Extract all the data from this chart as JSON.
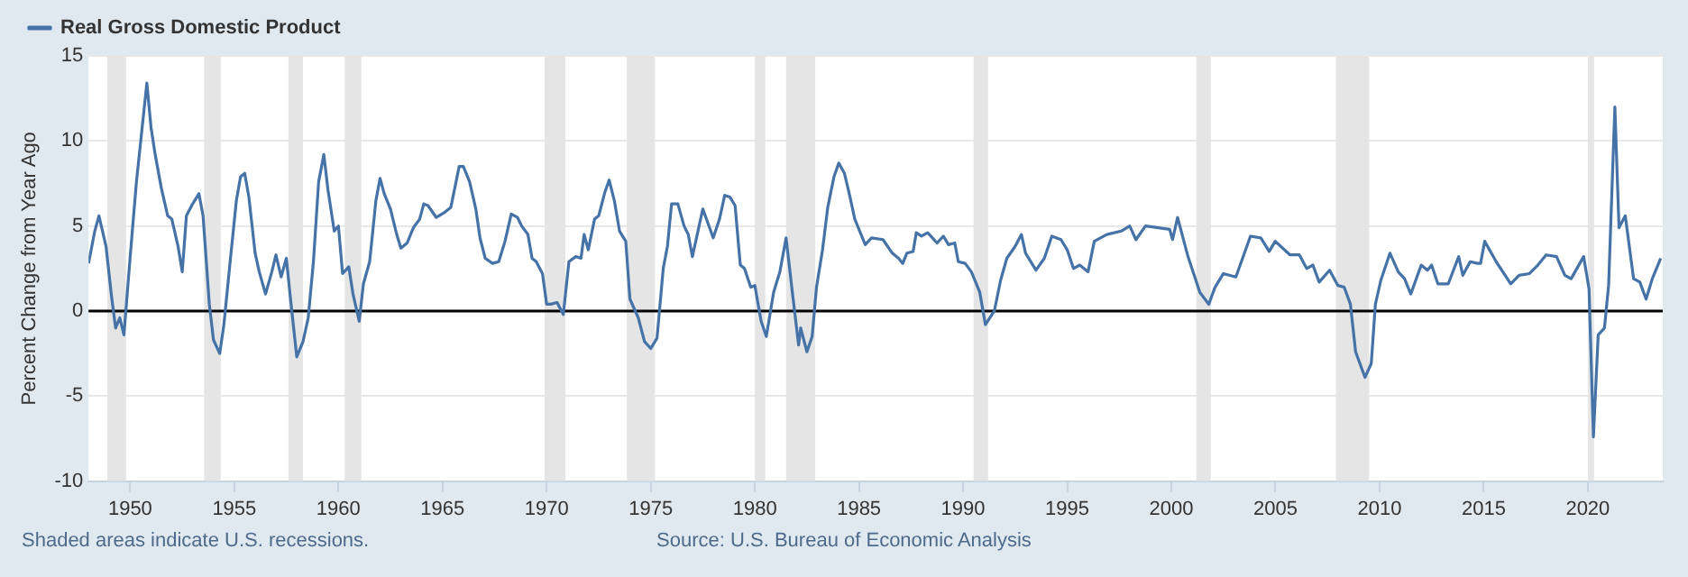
{
  "chart_data": {
    "type": "line",
    "ylabel": "Percent Change from Year Ago",
    "xlim": [
      1948,
      2023.6
    ],
    "xticks": [
      1950,
      1955,
      1960,
      1965,
      1970,
      1975,
      1980,
      1985,
      1990,
      1995,
      2000,
      2005,
      2010,
      2015,
      2020
    ],
    "ylim": [
      -10,
      15
    ],
    "yticks": [
      -10,
      -5,
      0,
      5,
      10,
      15
    ],
    "grid": "y",
    "legend": "top left",
    "marker": "none",
    "line_style": "solid",
    "series": [
      {
        "name": "Real Gross Domestic Product",
        "color": "#4572a7",
        "x": [
          1948.0,
          1948.3,
          1948.5,
          1948.84,
          1949.1,
          1949.3,
          1949.5,
          1949.7,
          1950.0,
          1950.3,
          1950.8,
          1951.0,
          1951.2,
          1951.5,
          1951.8,
          1952.0,
          1952.3,
          1952.5,
          1952.7,
          1953.0,
          1953.3,
          1953.5,
          1953.8,
          1954.0,
          1954.3,
          1954.5,
          1954.8,
          1955.1,
          1955.3,
          1955.5,
          1955.7,
          1956.0,
          1956.2,
          1956.5,
          1956.8,
          1957.0,
          1957.25,
          1957.5,
          1957.7,
          1958.0,
          1958.3,
          1958.55,
          1958.8,
          1959.05,
          1959.3,
          1959.5,
          1959.8,
          1960.0,
          1960.2,
          1960.5,
          1960.7,
          1961.0,
          1961.2,
          1961.5,
          1961.8,
          1962.0,
          1962.2,
          1962.5,
          1962.8,
          1963.0,
          1963.3,
          1963.6,
          1963.9,
          1964.1,
          1964.3,
          1964.7,
          1965.1,
          1965.4,
          1965.8,
          1966.0,
          1966.3,
          1966.6,
          1966.8,
          1967.05,
          1967.4,
          1967.7,
          1968.0,
          1968.3,
          1968.6,
          1968.8,
          1969.1,
          1969.3,
          1969.5,
          1969.8,
          1970.0,
          1970.2,
          1970.5,
          1970.8,
          1971.07,
          1971.4,
          1971.65,
          1971.8,
          1972.0,
          1972.3,
          1972.5,
          1972.8,
          1973.0,
          1973.25,
          1973.5,
          1973.8,
          1974.0,
          1974.4,
          1974.7,
          1975.0,
          1975.3,
          1975.6,
          1975.8,
          1976.0,
          1976.3,
          1976.6,
          1976.8,
          1977.0,
          1977.5,
          1978.0,
          1978.3,
          1978.55,
          1978.8,
          1979.05,
          1979.3,
          1979.5,
          1979.8,
          1980.0,
          1980.3,
          1980.55,
          1980.9,
          1981.2,
          1981.5,
          1981.8,
          1982.1,
          1982.2,
          1982.5,
          1982.75,
          1982.96,
          1983.25,
          1983.5,
          1983.8,
          1984.03,
          1984.3,
          1984.55,
          1984.8,
          1985.3,
          1985.6,
          1986.15,
          1986.6,
          1986.9,
          1987.1,
          1987.3,
          1987.6,
          1987.75,
          1988.0,
          1988.3,
          1988.75,
          1989.05,
          1989.3,
          1989.6,
          1989.77,
          1990.1,
          1990.4,
          1990.8,
          1991.07,
          1991.5,
          1991.8,
          1992.1,
          1992.5,
          1992.8,
          1993.0,
          1993.5,
          1993.9,
          1994.26,
          1994.7,
          1995.0,
          1995.3,
          1995.6,
          1996.0,
          1996.3,
          1996.9,
          1997.6,
          1998.0,
          1998.3,
          1998.76,
          1999.92,
          2000.06,
          2000.3,
          2000.8,
          2001.37,
          2001.8,
          2002.1,
          2002.5,
          2003.1,
          2003.8,
          2004.3,
          2004.7,
          2004.99,
          2005.7,
          2006.15,
          2006.5,
          2006.8,
          2007.1,
          2007.6,
          2008.0,
          2008.3,
          2008.6,
          2008.85,
          2009.3,
          2009.6,
          2009.8,
          2010.06,
          2010.5,
          2010.9,
          2011.2,
          2011.5,
          2012.0,
          2012.3,
          2012.5,
          2012.8,
          2013.3,
          2013.8,
          2014.0,
          2014.35,
          2014.7,
          2014.85,
          2015.05,
          2015.6,
          2016.3,
          2016.7,
          2017.2,
          2017.6,
          2018.0,
          2018.5,
          2018.9,
          2019.2,
          2019.8,
          2020.06,
          2020.27,
          2020.5,
          2020.8,
          2021.0,
          2021.3,
          2021.5,
          2021.8,
          2022.2,
          2022.5,
          2022.8,
          2023.1,
          2023.5
        ],
        "values": [
          2.8,
          4.7,
          5.6,
          3.8,
          0.9,
          -1.0,
          -0.4,
          -1.4,
          3.2,
          7.6,
          13.4,
          10.8,
          9.2,
          7.2,
          5.6,
          5.4,
          3.8,
          2.3,
          5.6,
          6.3,
          6.9,
          5.6,
          0.4,
          -1.7,
          -2.5,
          -0.8,
          2.9,
          6.5,
          7.9,
          8.1,
          6.7,
          3.4,
          2.3,
          1.0,
          2.3,
          3.3,
          2.0,
          3.1,
          0.7,
          -2.7,
          -1.8,
          -0.4,
          2.9,
          7.6,
          9.2,
          7.1,
          4.7,
          5.0,
          2.2,
          2.6,
          1.0,
          -0.6,
          1.6,
          2.9,
          6.5,
          7.8,
          6.9,
          6.0,
          4.5,
          3.7,
          4.0,
          4.9,
          5.4,
          6.3,
          6.2,
          5.5,
          5.8,
          6.1,
          8.5,
          8.5,
          7.6,
          6.0,
          4.3,
          3.1,
          2.8,
          2.9,
          4.1,
          5.7,
          5.5,
          5.0,
          4.5,
          3.1,
          2.9,
          2.2,
          0.4,
          0.4,
          0.5,
          -0.2,
          2.9,
          3.2,
          3.1,
          4.5,
          3.6,
          5.4,
          5.6,
          7.0,
          7.7,
          6.5,
          4.7,
          4.1,
          0.7,
          -0.4,
          -1.8,
          -2.2,
          -1.6,
          2.5,
          3.8,
          6.3,
          6.3,
          5.0,
          4.5,
          3.2,
          6.0,
          4.3,
          5.4,
          6.8,
          6.7,
          6.2,
          2.7,
          2.5,
          1.4,
          1.5,
          -0.6,
          -1.5,
          1.1,
          2.3,
          4.3,
          1.1,
          -2.0,
          -1.0,
          -2.4,
          -1.5,
          1.4,
          3.6,
          6.1,
          7.9,
          8.7,
          8.1,
          6.8,
          5.4,
          3.9,
          4.3,
          4.2,
          3.4,
          3.1,
          2.8,
          3.4,
          3.5,
          4.6,
          4.4,
          4.6,
          4.0,
          4.4,
          3.9,
          4.0,
          2.9,
          2.8,
          2.3,
          1.1,
          -0.8,
          0.0,
          1.8,
          3.1,
          3.8,
          4.5,
          3.4,
          2.4,
          3.1,
          4.4,
          4.2,
          3.6,
          2.5,
          2.7,
          2.3,
          4.1,
          4.5,
          4.7,
          5.0,
          4.2,
          5.0,
          4.8,
          4.2,
          5.5,
          3.2,
          1.1,
          0.4,
          1.4,
          2.2,
          2.0,
          4.4,
          4.3,
          3.5,
          4.1,
          3.3,
          3.3,
          2.5,
          2.7,
          1.7,
          2.4,
          1.5,
          1.4,
          0.4,
          -2.4,
          -3.9,
          -3.1,
          0.4,
          1.8,
          3.4,
          2.3,
          1.9,
          1.0,
          2.7,
          2.4,
          2.7,
          1.6,
          1.6,
          3.2,
          2.1,
          2.9,
          2.8,
          2.8,
          4.1,
          2.9,
          1.6,
          2.1,
          2.2,
          2.7,
          3.3,
          3.2,
          2.1,
          1.9,
          3.2,
          1.3,
          -7.4,
          -1.4,
          -1.0,
          1.5,
          12.0,
          4.9,
          5.6,
          1.9,
          1.7,
          0.7,
          1.9,
          3.1
        ]
      }
    ],
    "ref_lines": [
      {
        "axis": "y",
        "value": 0,
        "color": "#000000"
      }
    ],
    "bands": [
      {
        "axis": "x",
        "from": 1948.9,
        "to": 1949.8,
        "color": "#e5e5e5"
      },
      {
        "axis": "x",
        "from": 1953.55,
        "to": 1954.35,
        "color": "#e5e5e5"
      },
      {
        "axis": "x",
        "from": 1957.6,
        "to": 1958.3,
        "color": "#e5e5e5"
      },
      {
        "axis": "x",
        "from": 1960.3,
        "to": 1961.1,
        "color": "#e5e5e5"
      },
      {
        "axis": "x",
        "from": 1969.9,
        "to": 1970.9,
        "color": "#e5e5e5"
      },
      {
        "axis": "x",
        "from": 1973.85,
        "to": 1975.2,
        "color": "#e5e5e5"
      },
      {
        "axis": "x",
        "from": 1980.0,
        "to": 1980.5,
        "color": "#e5e5e5"
      },
      {
        "axis": "x",
        "from": 1981.5,
        "to": 1982.9,
        "color": "#e5e5e5"
      },
      {
        "axis": "x",
        "from": 1990.5,
        "to": 1991.2,
        "color": "#e5e5e5"
      },
      {
        "axis": "x",
        "from": 2001.2,
        "to": 2001.9,
        "color": "#e5e5e5"
      },
      {
        "axis": "x",
        "from": 2007.9,
        "to": 2009.5,
        "color": "#e5e5e5"
      },
      {
        "axis": "x",
        "from": 2020.0,
        "to": 2020.3,
        "color": "#e5e5e5"
      }
    ],
    "annotations": [
      "Shaded areas indicate U.S. recessions.",
      "Source: U.S. Bureau of Economic Analysis"
    ]
  }
}
